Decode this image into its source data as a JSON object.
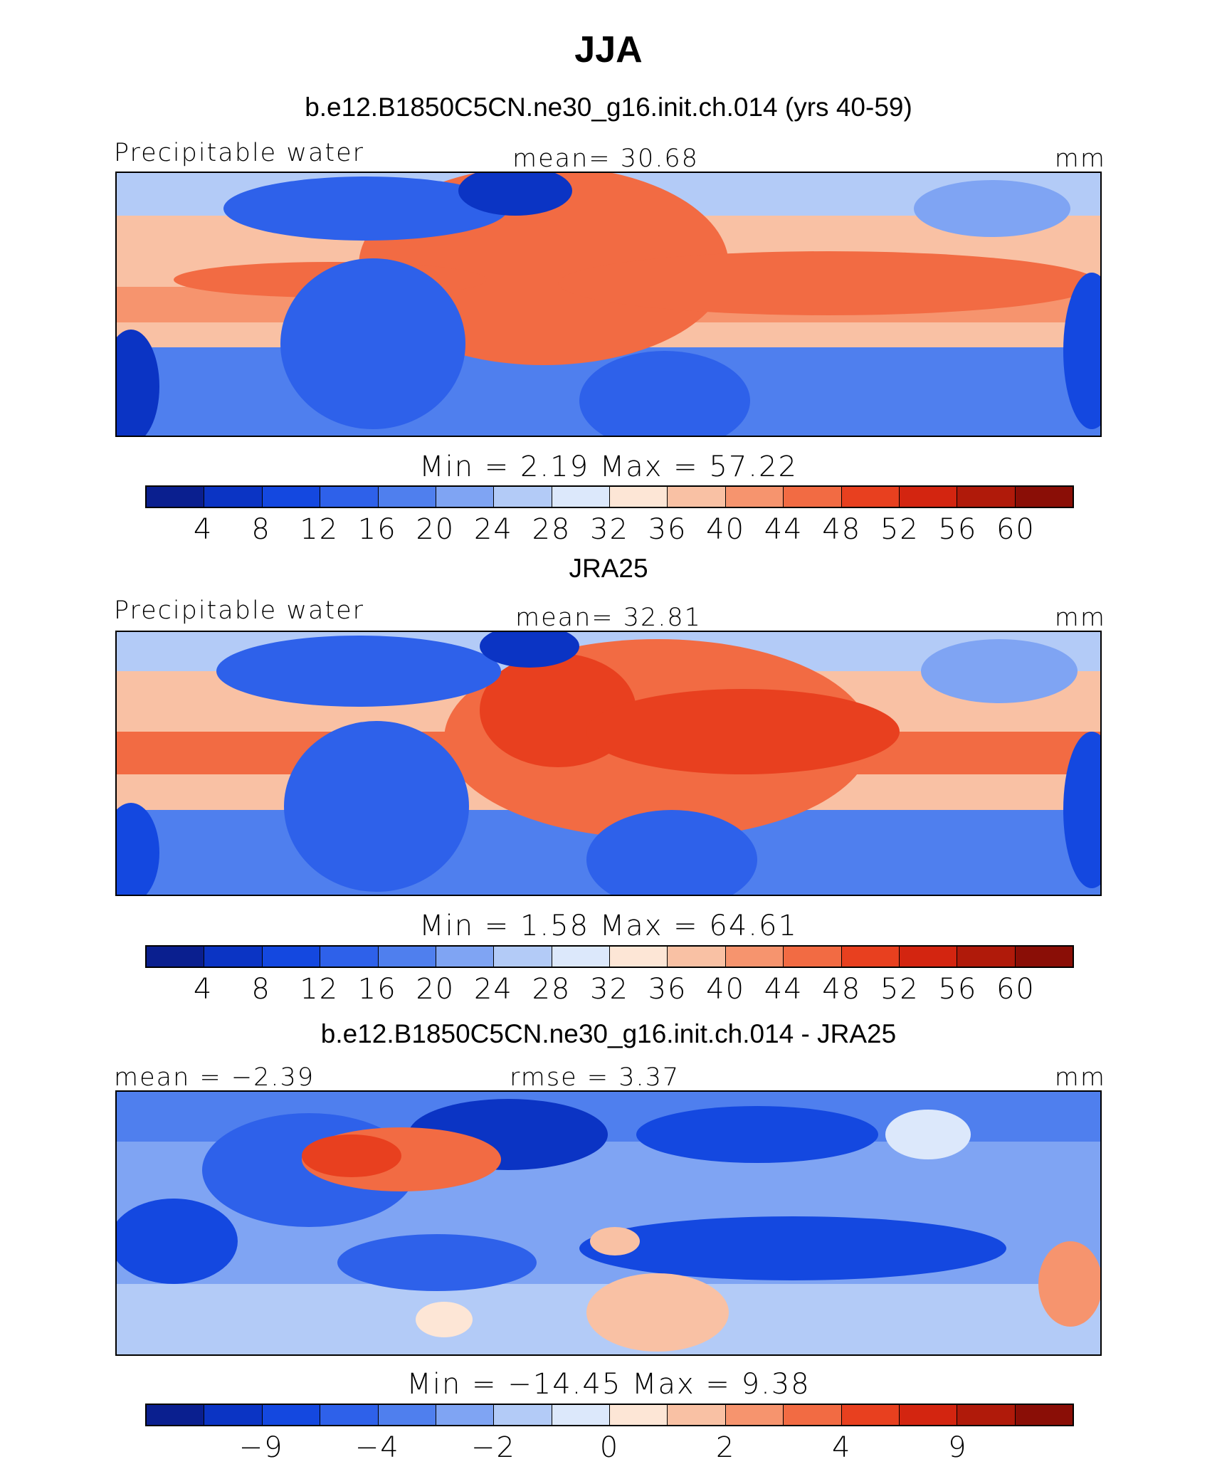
{
  "title": "JJA",
  "colors": [
    "#0a1f8f",
    "#0b34c4",
    "#1448e0",
    "#2e61ea",
    "#4f7fee",
    "#7fa4f3",
    "#b3cbf7",
    "#dce8fb",
    "#fde6d6",
    "#f9c1a4",
    "#f6946e",
    "#f26b43",
    "#e8401f",
    "#d32510",
    "#b01a0a",
    "#8a0e06"
  ],
  "chart_data": [
    {
      "type": "heatmap",
      "title": "b.e12.B1850C5CN.ne30_g16.init.ch.014 (yrs 40-59)",
      "left_label": "Precipitable water",
      "center_label": "mean=   30.68",
      "units": "mm",
      "minmax": "Min  =     2.19  Max  =    57.22",
      "colorbar_ticks": [
        "4",
        "8",
        "12",
        "16",
        "20",
        "24",
        "28",
        "32",
        "36",
        "40",
        "44",
        "48",
        "52",
        "56",
        "60"
      ],
      "mean": 30.68,
      "min": 2.19,
      "max": 57.22
    },
    {
      "type": "heatmap",
      "title": "JRA25",
      "left_label": "Precipitable water",
      "center_label": "mean=   32.81",
      "units": "mm",
      "minmax": "Min  =     1.58  Max  =    64.61",
      "colorbar_ticks": [
        "4",
        "8",
        "12",
        "16",
        "20",
        "24",
        "28",
        "32",
        "36",
        "40",
        "44",
        "48",
        "52",
        "56",
        "60"
      ],
      "mean": 32.81,
      "min": 1.58,
      "max": 64.61
    },
    {
      "type": "heatmap",
      "title": "b.e12.B1850C5CN.ne30_g16.init.ch.014 - JRA25",
      "left_label": "mean  =   −2.39",
      "center_label": "rmse  =     3.37",
      "units": "mm",
      "minmax": "Min  =  −14.45  Max  =     9.38",
      "colorbar_ticks": [
        "−9",
        "−4",
        "−2",
        "0",
        "2",
        "4",
        "9"
      ],
      "mean": -2.39,
      "rmse": 3.37,
      "min": -14.45,
      "max": 9.38
    }
  ]
}
